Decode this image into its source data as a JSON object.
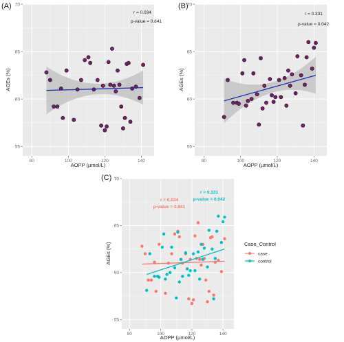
{
  "panels": [
    {
      "label": "(A)",
      "stat_r": "r = 0.034",
      "stat_p": "p-value = 0.841"
    },
    {
      "label": "(B)",
      "stat_r": "r = 0.331",
      "stat_p": "p-value = 0.042"
    },
    {
      "label": "(C)",
      "case_r": "r = 0.034",
      "case_p": "p-value = 0.841",
      "control_r": "r = 0.331",
      "control_p": "p-value = 0.042"
    }
  ],
  "legend": {
    "title": "Case_Control",
    "items": [
      "case",
      "control"
    ]
  },
  "colors": {
    "case": "#F8766D",
    "control": "#00BFC4",
    "point_fill": "#7B1C6E",
    "fit_line": "#1f2fb5",
    "panel_bg": "#ebebeb",
    "ci_band": "#bdbdbd"
  },
  "chart_data": [
    {
      "type": "scatter",
      "xlabel": "AOPP (µmol/L)",
      "ylabel": "AGEs (%)",
      "xlim": [
        75,
        147
      ],
      "ylim": [
        54,
        70
      ],
      "xticks": [
        80,
        100,
        120,
        140
      ],
      "yticks": [
        55,
        60,
        65,
        70
      ],
      "series": [
        {
          "points": [
            [
              88,
              62.8
            ],
            [
              90,
              62
            ],
            [
              92,
              59.2
            ],
            [
              94,
              59.2
            ],
            [
              96,
              61.1
            ],
            [
              97,
              58
            ],
            [
              99,
              63
            ],
            [
              103,
              57.8
            ],
            [
              105,
              61
            ],
            [
              107,
              62
            ],
            [
              109,
              64.1
            ],
            [
              111,
              64.4
            ],
            [
              112,
              63.8
            ],
            [
              114,
              61
            ],
            [
              116,
              62
            ],
            [
              118,
              57.2
            ],
            [
              119,
              61.4
            ],
            [
              120,
              56.7
            ],
            [
              121,
              57.1
            ],
            [
              122,
              63.9
            ],
            [
              123,
              61.5
            ],
            [
              124,
              65.3
            ],
            [
              125,
              61.4
            ],
            [
              126,
              60.8
            ],
            [
              127,
              63
            ],
            [
              128,
              61.5
            ],
            [
              129,
              59.2
            ],
            [
              130,
              56.9
            ],
            [
              131,
              58
            ],
            [
              132,
              63.7
            ],
            [
              133,
              63.8
            ],
            [
              134,
              57.6
            ],
            [
              135,
              61.1
            ],
            [
              137,
              61.3
            ],
            [
              139,
              60.1
            ],
            [
              141,
              63.6
            ]
          ],
          "fit": {
            "x": [
              88,
              141
            ],
            "y": [
              60.9,
              61.2
            ]
          }
        }
      ]
    },
    {
      "type": "scatter",
      "xlabel": "AOPP (µmol/L)",
      "ylabel": "AGEs (%)",
      "xlim": [
        75,
        147
      ],
      "ylim": [
        54,
        70
      ],
      "xticks": [
        80,
        100,
        120,
        140
      ],
      "yticks": [
        55,
        60,
        65,
        70
      ],
      "series": [
        {
          "points": [
            [
              91,
              58.1
            ],
            [
              93,
              62
            ],
            [
              96,
              59.6
            ],
            [
              98,
              59.6
            ],
            [
              99,
              59.5
            ],
            [
              101,
              62.7
            ],
            [
              102,
              64.1
            ],
            [
              103,
              59.3
            ],
            [
              104,
              59.8
            ],
            [
              106,
              60
            ],
            [
              107,
              62.7
            ],
            [
              109,
              60.5
            ],
            [
              110,
              57.3
            ],
            [
              111,
              64.3
            ],
            [
              112,
              59
            ],
            [
              113,
              61.4
            ],
            [
              114,
              59.6
            ],
            [
              116,
              62.1
            ],
            [
              117,
              60.4
            ],
            [
              118,
              59.7
            ],
            [
              119,
              60.2
            ],
            [
              121,
              62
            ],
            [
              122,
              60.2
            ],
            [
              124,
              62.2
            ],
            [
              125,
              59.3
            ],
            [
              126,
              63
            ],
            [
              127,
              61.4
            ],
            [
              128,
              62.6
            ],
            [
              130,
              60.6
            ],
            [
              131,
              64.5
            ],
            [
              133,
              62.5
            ],
            [
              134,
              57.2
            ],
            [
              135,
              61.5
            ],
            [
              136,
              64.4
            ],
            [
              137,
              66
            ],
            [
              139,
              63.2
            ],
            [
              140,
              65.4
            ],
            [
              141,
              65.9
            ]
          ],
          "fit": {
            "x": [
              91,
              141
            ],
            "y": [
              59.8,
              62.5
            ]
          }
        }
      ]
    },
    {
      "type": "scatter",
      "xlabel": "AOPP (µmol/L)",
      "ylabel": "AGEs (%)",
      "xlim": [
        75,
        147
      ],
      "ylim": [
        54,
        70
      ],
      "xticks": [
        80,
        100,
        120,
        140
      ],
      "yticks": [
        55,
        60,
        65,
        70
      ],
      "legend_title": "Case_Control",
      "series": [
        {
          "name": "case",
          "points": [
            [
              88,
              62.8
            ],
            [
              90,
              62
            ],
            [
              92,
              59.2
            ],
            [
              94,
              59.2
            ],
            [
              96,
              61.1
            ],
            [
              97,
              58
            ],
            [
              99,
              63
            ],
            [
              103,
              57.8
            ],
            [
              105,
              61
            ],
            [
              107,
              62
            ],
            [
              109,
              64.1
            ],
            [
              111,
              64.4
            ],
            [
              112,
              63.8
            ],
            [
              114,
              61
            ],
            [
              116,
              62
            ],
            [
              118,
              57.2
            ],
            [
              119,
              61.4
            ],
            [
              120,
              56.7
            ],
            [
              121,
              57.1
            ],
            [
              122,
              63.9
            ],
            [
              123,
              61.5
            ],
            [
              124,
              65.3
            ],
            [
              125,
              61.4
            ],
            [
              126,
              60.8
            ],
            [
              127,
              63
            ],
            [
              128,
              61.5
            ],
            [
              129,
              59.2
            ],
            [
              130,
              56.9
            ],
            [
              131,
              58
            ],
            [
              132,
              63.7
            ],
            [
              133,
              63.8
            ],
            [
              134,
              57.6
            ],
            [
              135,
              61.1
            ],
            [
              137,
              61.3
            ],
            [
              139,
              60.1
            ],
            [
              141,
              63.6
            ]
          ],
          "fit": {
            "x": [
              88,
              141
            ],
            "y": [
              60.9,
              61.2
            ]
          }
        },
        {
          "name": "control",
          "points": [
            [
              91,
              58.1
            ],
            [
              93,
              62
            ],
            [
              96,
              59.6
            ],
            [
              98,
              59.6
            ],
            [
              99,
              59.5
            ],
            [
              101,
              62.7
            ],
            [
              102,
              64.1
            ],
            [
              103,
              59.3
            ],
            [
              104,
              59.8
            ],
            [
              106,
              60
            ],
            [
              107,
              62.7
            ],
            [
              109,
              60.5
            ],
            [
              110,
              57.3
            ],
            [
              111,
              64.3
            ],
            [
              112,
              59
            ],
            [
              113,
              61.4
            ],
            [
              114,
              59.6
            ],
            [
              116,
              62.1
            ],
            [
              117,
              60.4
            ],
            [
              118,
              59.7
            ],
            [
              119,
              60.2
            ],
            [
              121,
              62
            ],
            [
              122,
              60.2
            ],
            [
              124,
              62.2
            ],
            [
              125,
              59.3
            ],
            [
              126,
              63
            ],
            [
              127,
              61.4
            ],
            [
              128,
              62.6
            ],
            [
              130,
              60.6
            ],
            [
              131,
              64.5
            ],
            [
              133,
              62.5
            ],
            [
              134,
              57.2
            ],
            [
              135,
              61.5
            ],
            [
              136,
              64.4
            ],
            [
              137,
              66
            ],
            [
              139,
              63.2
            ],
            [
              140,
              65.4
            ],
            [
              141,
              65.9
            ]
          ],
          "fit": {
            "x": [
              91,
              141
            ],
            "y": [
              59.8,
              62.5
            ]
          }
        }
      ]
    }
  ]
}
